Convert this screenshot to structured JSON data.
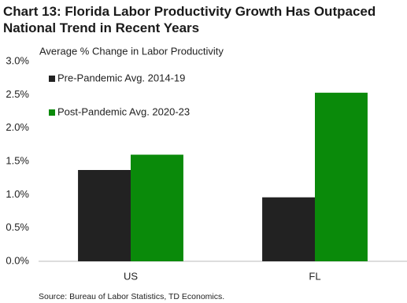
{
  "chart_data": {
    "type": "bar",
    "title": "Chart 13: Florida Labor Productivity Growth Has Outpaced National Trend in Recent Years",
    "subtitle": "Average % Change in Labor Productivity",
    "categories": [
      "US",
      "FL"
    ],
    "series": [
      {
        "name": "Pre-Pandemic Avg. 2014-19",
        "color": "#222222",
        "values": [
          1.37,
          0.96
        ]
      },
      {
        "name": "Post-Pandemic Avg. 2020-23",
        "color": "#0a8a0a",
        "values": [
          1.6,
          2.53
        ]
      }
    ],
    "ylim": [
      0,
      3
    ],
    "yticks": [
      {
        "value": 0,
        "label": "0.0%"
      },
      {
        "value": 0.5,
        "label": "0.5%"
      },
      {
        "value": 1,
        "label": "1.0%"
      },
      {
        "value": 1.5,
        "label": "1.5%"
      },
      {
        "value": 2,
        "label": "2.0%"
      },
      {
        "value": 2.5,
        "label": "2.5%"
      },
      {
        "value": 3,
        "label": "3.0%"
      }
    ],
    "grid": false,
    "legend": "top-left",
    "source": "Source: Bureau of Labor Statistics, TD Economics."
  }
}
